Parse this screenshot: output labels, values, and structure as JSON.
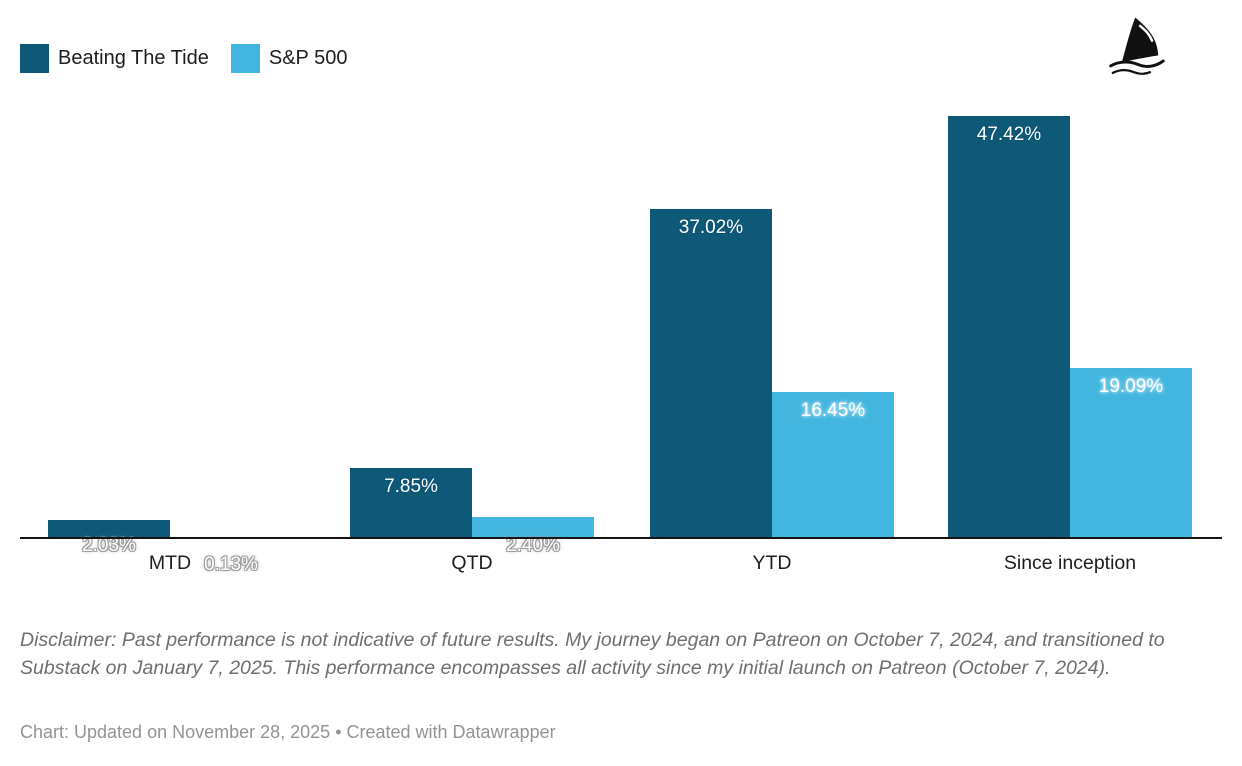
{
  "legend": {
    "items": [
      {
        "label": "Beating The Tide"
      },
      {
        "label": "S&P 500"
      }
    ]
  },
  "logo": {
    "icon": "shark-fin-with-waves"
  },
  "chart_data": {
    "type": "bar",
    "categories": [
      "MTD",
      "QTD",
      "YTD",
      "Since inception"
    ],
    "series": [
      {
        "name": "Beating The Tide",
        "color": "#0E5878",
        "values": [
          2.03,
          7.85,
          37.02,
          47.42
        ],
        "labels": [
          "2.03%",
          "7.85%",
          "37.02%",
          "47.42%"
        ]
      },
      {
        "name": "S&P 500",
        "color": "#42B6E0",
        "values": [
          0.13,
          2.4,
          16.45,
          19.09
        ],
        "labels": [
          "0.13%",
          "2.40%",
          "16.45%",
          "19.09%"
        ]
      }
    ],
    "value_suffix": "%",
    "ylim": [
      0,
      49
    ],
    "grid": false,
    "legend_position": "top-left",
    "axis_color": "#151515"
  },
  "footnotes": {
    "disclaimer": "Disclaimer: Past performance is not indicative of future results. My journey began on Patreon on October 7, 2024, and transitioned to Substack on January 7, 2025. This performance encompasses all activity since my initial launch on Patreon (October 7, 2024).",
    "credit": "Chart: Updated on November 28, 2025 • Created with Datawrapper"
  }
}
